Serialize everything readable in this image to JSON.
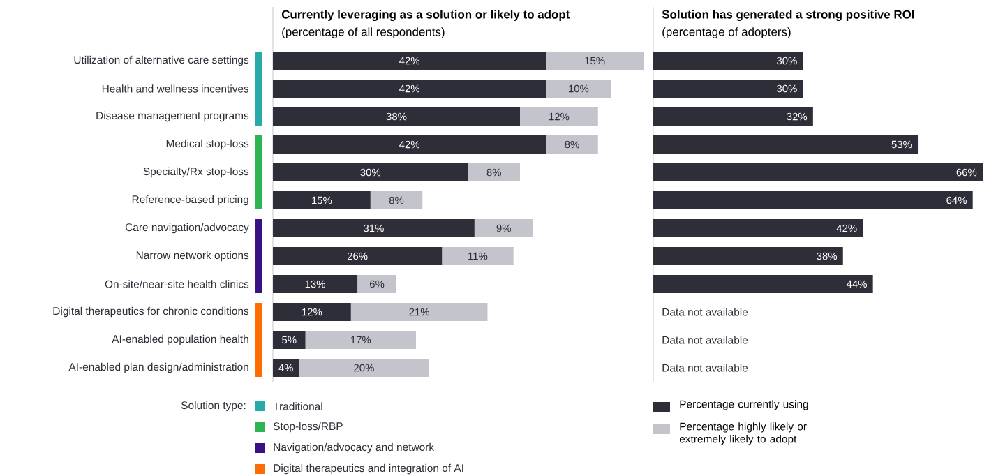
{
  "chart_data": [
    {
      "type": "bar",
      "orientation": "horizontal",
      "stacked": true,
      "title": "Currently leveraging as a solution or likely to adopt",
      "subtitle": "(percentage of all respondents)",
      "categories": [
        "Utilization of alternative care settings",
        "Health and wellness incentives",
        "Disease management programs",
        "Medical stop-loss",
        "Specialty/Rx stop-loss",
        "Reference-based pricing",
        "Care navigation/advocacy",
        "Narrow network options",
        "On-site/near-site health clinics",
        "Digital therapeutics for chronic conditions",
        "AI-enabled population health",
        "AI-enabled plan design/administration"
      ],
      "series": [
        {
          "name": "Percentage currently using",
          "color": "#2e2e38",
          "values": [
            42,
            42,
            38,
            42,
            30,
            15,
            31,
            26,
            13,
            12,
            5,
            4
          ],
          "value_labels": [
            "42%",
            "42%",
            "38%",
            "42%",
            "30%",
            "15%",
            "31%",
            "26%",
            "13%",
            "12%",
            "5%",
            "4%"
          ]
        },
        {
          "name": "Percentage highly likely or extremely likely to adopt",
          "color": "#c4c4cd",
          "values": [
            15,
            10,
            12,
            8,
            8,
            8,
            9,
            11,
            6,
            21,
            17,
            20
          ],
          "value_labels": [
            "15%",
            "10%",
            "12%",
            "8%",
            "8%",
            "8%",
            "9%",
            "11%",
            "6%",
            "21%",
            "17%",
            "20%"
          ]
        }
      ],
      "annotations": [
        "Solution type:",
        "Traditional",
        "Stop-loss/RBP",
        "Navigation/advocacy and network",
        "Digital therapeutics and integration of AI"
      ],
      "legend": "bottom",
      "tick_labels": "y"
    },
    {
      "type": "bar",
      "orientation": "horizontal",
      "title": "Solution has generated a strong positive ROI",
      "subtitle": "(percentage of adopters)",
      "categories": [
        null,
        null,
        null,
        null,
        null,
        null,
        null,
        null,
        null,
        null,
        null,
        null
      ],
      "series": [
        {
          "color": "#2e2e38",
          "values": [
            30,
            30,
            32,
            53,
            66,
            64,
            42,
            38,
            44,
            null,
            null,
            null
          ],
          "value_labels": [
            "30%",
            "30%",
            "32%",
            "53%",
            "66%",
            "64%",
            "42%",
            "38%",
            "44%",
            null,
            null,
            null
          ]
        }
      ],
      "annotations": [
        "Data not available",
        "Data not available",
        "Data not available"
      ],
      "tick_labels": false
    }
  ]
}
